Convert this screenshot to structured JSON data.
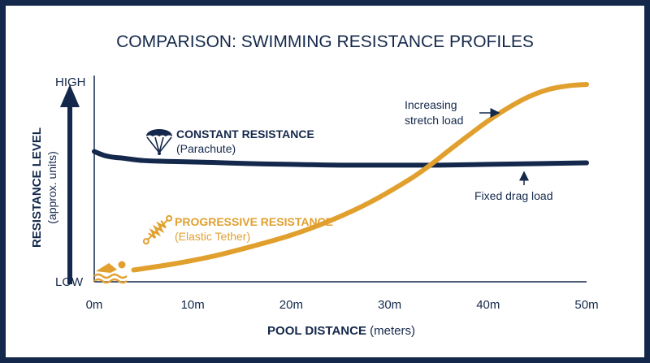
{
  "chart_data": {
    "type": "line",
    "title": "COMPARISON: SWIMMING RESISTANCE PROFILES",
    "xlabel_bold": "POOL DISTANCE",
    "xlabel_unit": " (meters)",
    "ylabel": "RESISTANCE LEVEL",
    "ylabel_sub": "(approx. units)",
    "y_high_label": "HIGH",
    "y_low_label": "LOW",
    "xlim": [
      0,
      50
    ],
    "ylim": [
      0,
      100
    ],
    "x_ticks": [
      0,
      10,
      20,
      30,
      40,
      50
    ],
    "x_tick_labels": [
      "0m",
      "10m",
      "20m",
      "30m",
      "40m",
      "50m"
    ],
    "grid": false,
    "series": [
      {
        "name": "CONSTANT RESISTANCE",
        "subtitle": "(Parachute)",
        "color": "#14284b",
        "icon": "parachute-icon",
        "x": [
          0,
          1,
          2,
          3,
          5,
          8,
          12,
          16,
          20,
          25,
          30,
          35,
          40,
          45,
          50
        ],
        "y": [
          65,
          63,
          62,
          61.5,
          60.3,
          59.8,
          59.3,
          58.7,
          58.3,
          57.9,
          57.9,
          57.9,
          58.3,
          58.7,
          59.1
        ]
      },
      {
        "name": "PROGRESSIVE RESISTANCE",
        "subtitle": "(Elastic Tether)",
        "color": "#e1a02e",
        "icon": "elastic-tether-icon",
        "x": [
          4,
          8,
          12,
          16,
          20,
          24,
          28,
          32,
          34,
          36,
          38,
          40,
          42,
          44,
          46,
          48,
          50
        ],
        "y": [
          3.2,
          6.3,
          10.3,
          15.5,
          21.4,
          29,
          38.5,
          50.4,
          57.5,
          65.5,
          73.4,
          81,
          87.7,
          93.3,
          97.2,
          99.2,
          100
        ]
      }
    ],
    "annotations": [
      {
        "text": "Increasing",
        "text2": "stretch load",
        "series": "PROGRESSIVE RESISTANCE"
      },
      {
        "text": "Fixed drag load",
        "series": "CONSTANT RESISTANCE"
      }
    ]
  }
}
